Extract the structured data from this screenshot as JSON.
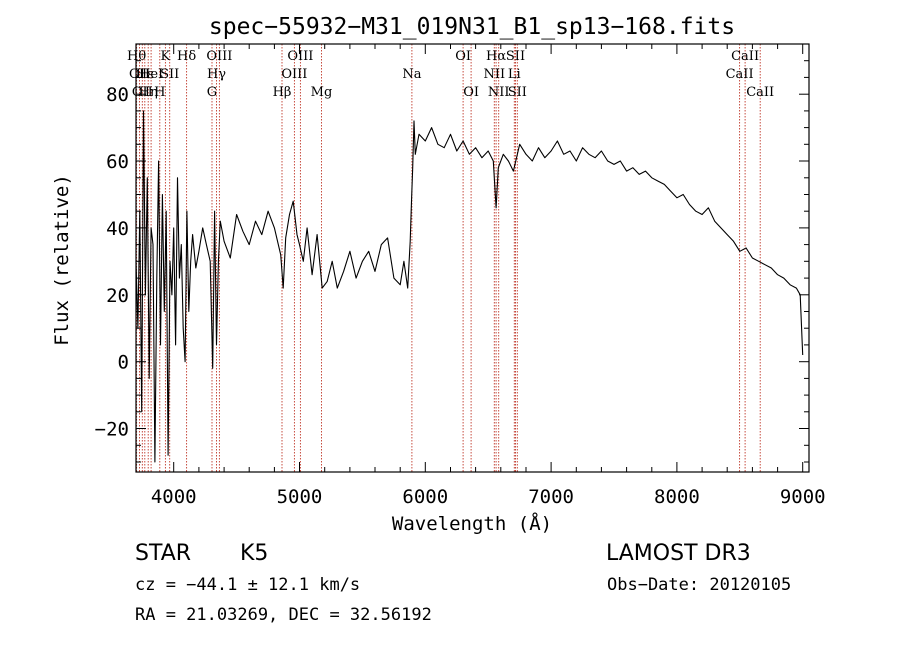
{
  "chart_data": {
    "type": "line",
    "title": "spec−55932−M31_019N31_B1_sp13−168.fits",
    "xlabel": "Wavelength (Å)",
    "ylabel": "Flux (relative)",
    "xlim": [
      3700,
      9050
    ],
    "ylim": [
      -33,
      95
    ],
    "x_ticks": [
      4000,
      5000,
      6000,
      7000,
      8000,
      9000
    ],
    "y_ticks": [
      -20,
      0,
      20,
      40,
      60,
      80
    ],
    "grid": false,
    "series": [
      {
        "name": "spectrum",
        "x": [
          3700,
          3715,
          3730,
          3745,
          3760,
          3775,
          3790,
          3805,
          3820,
          3835,
          3850,
          3865,
          3880,
          3895,
          3910,
          3925,
          3940,
          3955,
          3970,
          3985,
          4000,
          4015,
          4030,
          4045,
          4060,
          4075,
          4090,
          4105,
          4120,
          4135,
          4150,
          4175,
          4200,
          4230,
          4260,
          4290,
          4310,
          4325,
          4340,
          4355,
          4370,
          4400,
          4450,
          4500,
          4550,
          4600,
          4650,
          4700,
          4750,
          4800,
          4850,
          4870,
          4890,
          4920,
          4950,
          4980,
          5000,
          5030,
          5060,
          5100,
          5140,
          5180,
          5220,
          5260,
          5300,
          5350,
          5400,
          5450,
          5500,
          5550,
          5600,
          5650,
          5700,
          5750,
          5800,
          5830,
          5860,
          5880,
          5890,
          5900,
          5910,
          5920,
          5950,
          6000,
          6050,
          6100,
          6150,
          6200,
          6250,
          6300,
          6350,
          6400,
          6450,
          6500,
          6540,
          6563,
          6580,
          6620,
          6660,
          6700,
          6750,
          6800,
          6850,
          6900,
          6950,
          7000,
          7050,
          7100,
          7150,
          7200,
          7250,
          7300,
          7350,
          7400,
          7450,
          7500,
          7550,
          7600,
          7650,
          7700,
          7750,
          7800,
          7850,
          7900,
          7950,
          8000,
          8050,
          8100,
          8150,
          8200,
          8250,
          8300,
          8350,
          8400,
          8450,
          8500,
          8550,
          8600,
          8650,
          8700,
          8750,
          8800,
          8850,
          8900,
          8950,
          8980,
          9000
        ],
        "values": [
          30,
          10,
          45,
          -15,
          75,
          20,
          55,
          -5,
          40,
          35,
          -30,
          25,
          60,
          5,
          50,
          15,
          45,
          -28,
          30,
          20,
          40,
          5,
          55,
          25,
          35,
          10,
          0,
          45,
          15,
          30,
          38,
          28,
          33,
          40,
          35,
          30,
          -2,
          45,
          5,
          30,
          42,
          36,
          31,
          44,
          39,
          35,
          42,
          38,
          45,
          40,
          32,
          22,
          37,
          44,
          48,
          38,
          35,
          30,
          40,
          26,
          38,
          22,
          24,
          30,
          22,
          27,
          33,
          25,
          30,
          33,
          27,
          35,
          37,
          25,
          23,
          30,
          22,
          36,
          48,
          58,
          72,
          62,
          68,
          66,
          70,
          65,
          64,
          68,
          63,
          66,
          62,
          64,
          61,
          63,
          60,
          46,
          58,
          62,
          60,
          57,
          65,
          62,
          60,
          64,
          61,
          63,
          66,
          62,
          63,
          60,
          64,
          62,
          61,
          63,
          60,
          59,
          60,
          57,
          58,
          56,
          57,
          55,
          54,
          53,
          51,
          49,
          50,
          47,
          45,
          44,
          46,
          42,
          40,
          38,
          36,
          33,
          34,
          31,
          30,
          29,
          28,
          26,
          25,
          23,
          22,
          20,
          2
        ]
      }
    ],
    "lines": [
      {
        "w": 3705,
        "row": 1,
        "label": "Hθ"
      },
      {
        "w": 3728,
        "row": 2,
        "label": "OII"
      },
      {
        "w": 3750,
        "row": 3,
        "label": "OII"
      },
      {
        "w": 3770,
        "row": 2,
        "label": "Hε"
      },
      {
        "w": 3797,
        "row": 3,
        "label": "Hη"
      },
      {
        "w": 3820,
        "row": 2,
        "label": "HeI"
      },
      {
        "w": 3889,
        "row": 3,
        "label": "H"
      },
      {
        "w": 3934,
        "row": 1,
        "label": "K"
      },
      {
        "w": 3968,
        "row": 2,
        "label": "SII"
      },
      {
        "w": 4102,
        "row": 1,
        "label": "Hδ"
      },
      {
        "w": 4304,
        "row": 3,
        "label": "G"
      },
      {
        "w": 4340,
        "row": 2,
        "label": "Hγ"
      },
      {
        "w": 4363,
        "row": 1,
        "label": "OIII"
      },
      {
        "w": 4861,
        "row": 3,
        "label": "Hβ"
      },
      {
        "w": 4959,
        "row": 2,
        "label": "OIII"
      },
      {
        "w": 5007,
        "row": 1,
        "label": "OIII"
      },
      {
        "w": 5175,
        "row": 3,
        "label": "Mg"
      },
      {
        "w": 5893,
        "row": 2,
        "label": "Na"
      },
      {
        "w": 6300,
        "row": 1,
        "label": "OI"
      },
      {
        "w": 6364,
        "row": 3,
        "label": "OI"
      },
      {
        "w": 6548,
        "row": 2,
        "label": "NII"
      },
      {
        "w": 6563,
        "row": 1,
        "label": "Hα"
      },
      {
        "w": 6583,
        "row": 3,
        "label": "NII"
      },
      {
        "w": 6707,
        "row": 2,
        "label": "Li"
      },
      {
        "w": 6717,
        "row": 1,
        "label": "SII"
      },
      {
        "w": 6731,
        "row": 3,
        "label": "SII"
      },
      {
        "w": 8498,
        "row": 2,
        "label": "CaII"
      },
      {
        "w": 8542,
        "row": 1,
        "label": "CaII"
      },
      {
        "w": 8662,
        "row": 3,
        "label": "CaII"
      }
    ],
    "annotations": {
      "class_label": "STAR",
      "subclass": "K5",
      "survey": "LAMOST DR3",
      "cz": "cz = −44.1 ± 12.1 km/s",
      "obs_date": "Obs−Date: 20120105",
      "coords": "RA =  21.03269, DEC =  32.56192"
    },
    "colors": {
      "spectrum": "#000000",
      "line_marker": "#c0392b",
      "axes": "#000000"
    }
  }
}
